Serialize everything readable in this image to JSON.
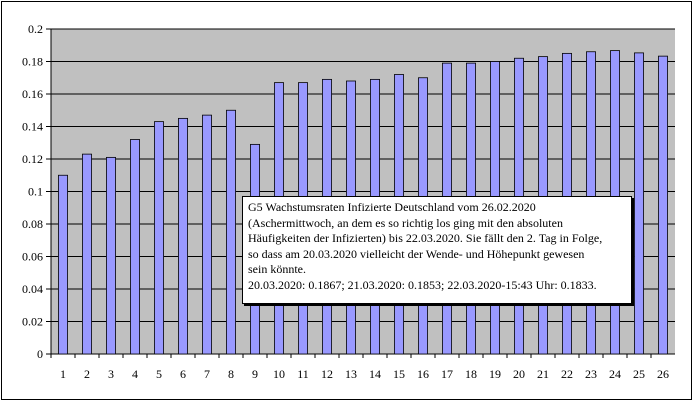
{
  "chart_data": {
    "type": "bar",
    "categories": [
      "1",
      "2",
      "3",
      "4",
      "5",
      "6",
      "7",
      "8",
      "9",
      "10",
      "11",
      "12",
      "13",
      "14",
      "15",
      "16",
      "17",
      "18",
      "19",
      "20",
      "21",
      "22",
      "23",
      "24",
      "25",
      "26"
    ],
    "values": [
      0.11,
      0.123,
      0.121,
      0.132,
      0.143,
      0.145,
      0.147,
      0.15,
      0.129,
      0.167,
      0.167,
      0.169,
      0.168,
      0.169,
      0.172,
      0.17,
      0.179,
      0.179,
      0.18,
      0.182,
      0.183,
      0.185,
      0.186,
      0.1867,
      0.1853,
      0.1833
    ],
    "ylim": [
      0,
      0.2
    ],
    "yticks": [
      "0",
      "0.02",
      "0.04",
      "0.06",
      "0.08",
      "0.1",
      "0.12",
      "0.14",
      "0.16",
      "0.18",
      "0.2"
    ],
    "grid": "horizontal",
    "colors": {
      "bar": "#9999ff",
      "plot_bg": "#c0c0c0",
      "bar_edge": "#000000"
    },
    "annotation": {
      "line1": "G5  Wachstumsraten Infizierte Deutschland vom 26.02.2020",
      "line2": "(Aschermittwoch, an dem es so richtig los ging mit den absoluten",
      "line3": "Häufigkeiten der Infizierten) bis 22.03.2020. Sie fällt den 2. Tag in Folge,",
      "line4": "so dass am 20.03.2020 vielleicht der Wende- und Höhepunkt gewesen",
      "line5": "sein könnte.",
      "line6": "20.03.2020: 0.1867; 21.03.2020: 0.1853; 22.03.2020-15:43 Uhr: 0.1833."
    }
  }
}
